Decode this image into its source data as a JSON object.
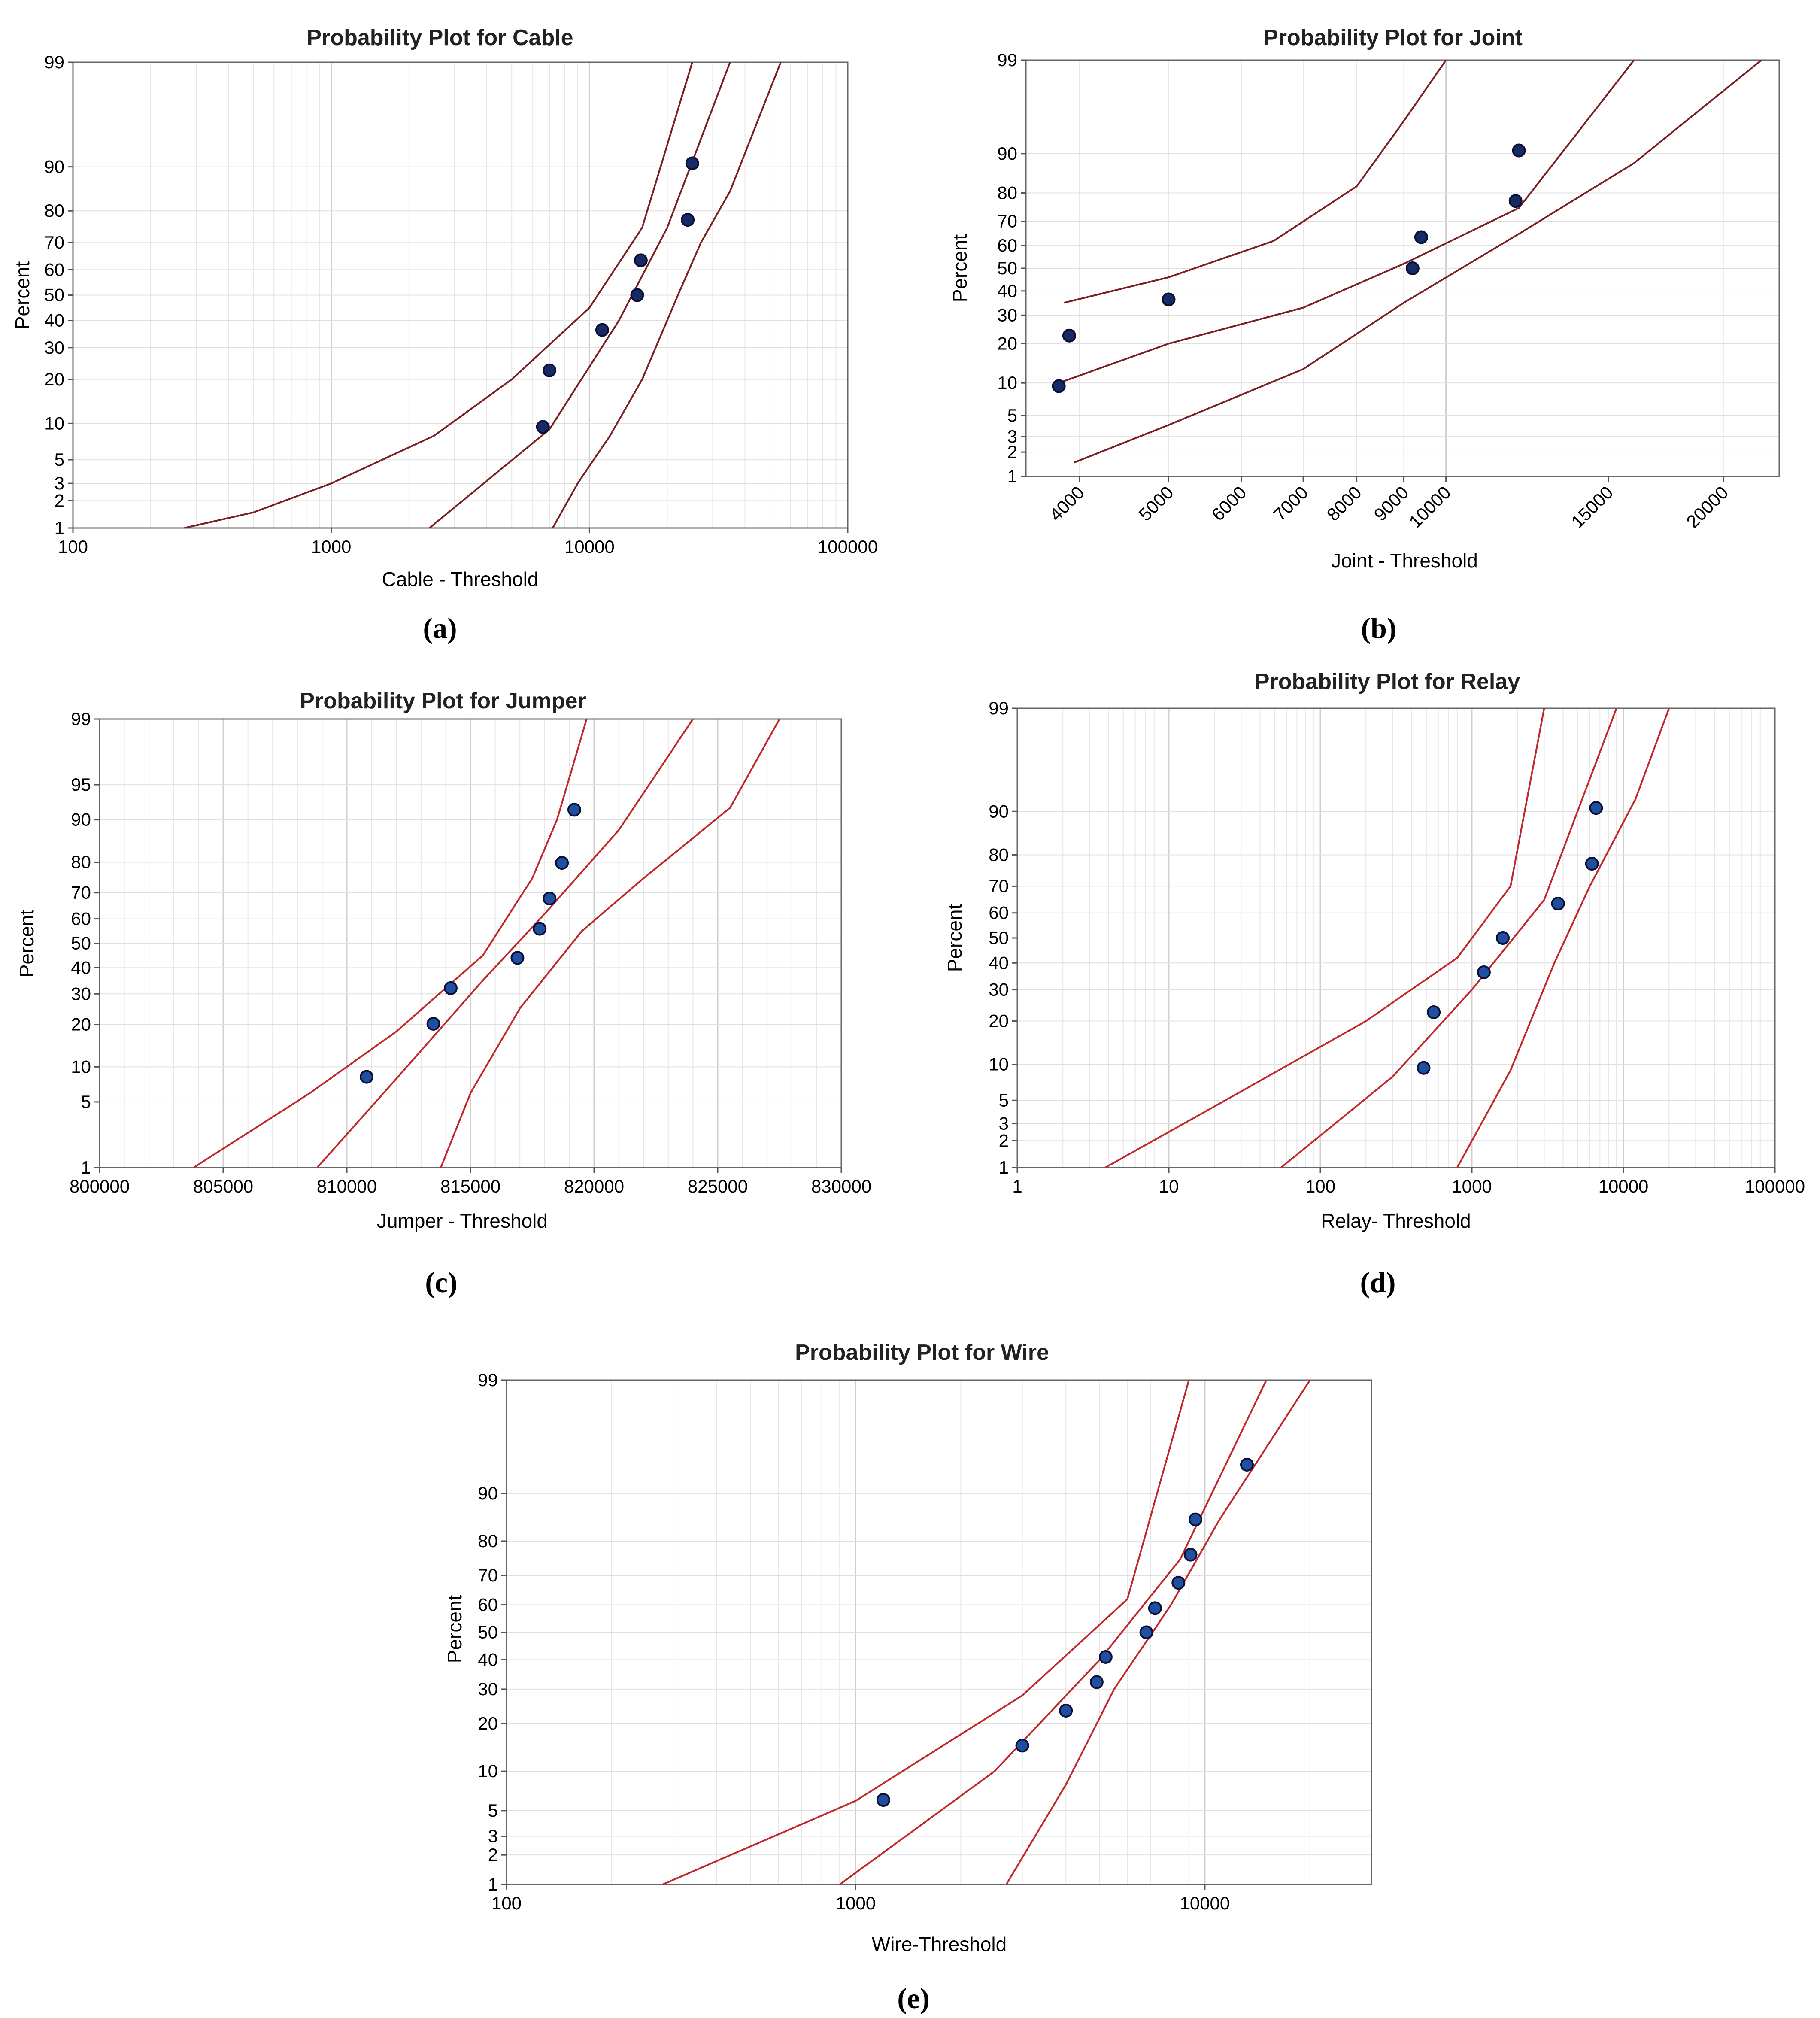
{
  "chart_data": [
    {
      "panel": "a",
      "caption": "(a)",
      "type": "scatter",
      "title": "Probability Plot for Cable",
      "xlabel": "Cable - Threshold",
      "ylabel": "Percent",
      "xscale": "log",
      "xlim": [
        100,
        100000
      ],
      "ylim": [
        1,
        99
      ],
      "x_ticks": [
        100,
        1000,
        10000,
        100000
      ],
      "x_tick_labels": [
        "100",
        "1000",
        "10000",
        "100000"
      ],
      "y_ticks": [
        1,
        2,
        3,
        5,
        10,
        20,
        30,
        40,
        50,
        60,
        70,
        80,
        90,
        99
      ],
      "y_tick_labels": [
        "1",
        "2",
        "3",
        "5",
        "10",
        "20",
        "30",
        "40",
        "50",
        "60",
        "70",
        "80",
        "90",
        "99"
      ],
      "grid": true,
      "point_color": "#162a66",
      "line_color": "#7a1f22",
      "points": [
        [
          6600,
          9.4
        ],
        [
          7000,
          22.6
        ],
        [
          11200,
          36.4
        ],
        [
          15300,
          50
        ],
        [
          15800,
          63.6
        ],
        [
          24000,
          77.4
        ],
        [
          25000,
          90.6
        ]
      ],
      "fit": [
        [
          2400,
          1
        ],
        [
          7000,
          9
        ],
        [
          13000,
          40
        ],
        [
          20000,
          75
        ],
        [
          35000,
          99
        ]
      ],
      "ci_upper": [
        [
          270,
          1
        ],
        [
          500,
          1.5
        ],
        [
          1000,
          3
        ],
        [
          2500,
          8
        ],
        [
          5000,
          20
        ],
        [
          10000,
          45
        ],
        [
          16000,
          75
        ],
        [
          25000,
          99
        ]
      ],
      "ci_lower": [
        [
          7200,
          1
        ],
        [
          9000,
          3
        ],
        [
          12000,
          8
        ],
        [
          16000,
          20
        ],
        [
          22000,
          50
        ],
        [
          27000,
          70
        ],
        [
          35000,
          85
        ],
        [
          55000,
          99
        ]
      ]
    },
    {
      "panel": "b",
      "caption": "(b)",
      "type": "scatter",
      "title": "Probability Plot for Joint",
      "xlabel": "Joint - Threshold",
      "ylabel": "Percent",
      "xscale": "log",
      "xlim": [
        3500,
        23000
      ],
      "ylim": [
        1,
        99
      ],
      "x_ticks": [
        4000,
        5000,
        6000,
        7000,
        8000,
        9000,
        10000,
        15000,
        20000
      ],
      "x_tick_labels": [
        "4000",
        "5000",
        "6000",
        "7000",
        "8000",
        "9000",
        "10000",
        "15000",
        "20000"
      ],
      "y_ticks": [
        1,
        2,
        3,
        5,
        10,
        20,
        30,
        40,
        50,
        60,
        70,
        80,
        90,
        99
      ],
      "y_tick_labels": [
        "1",
        "2",
        "3",
        "5",
        "10",
        "20",
        "30",
        "40",
        "50",
        "60",
        "70",
        "80",
        "90",
        "99"
      ],
      "grid": true,
      "point_color": "#162a66",
      "line_color": "#7a1f22",
      "points": [
        [
          3800,
          9.4
        ],
        [
          3900,
          22.6
        ],
        [
          5000,
          36.4
        ],
        [
          9200,
          50
        ],
        [
          9400,
          63.6
        ],
        [
          11900,
          77.4
        ],
        [
          12000,
          90.6
        ]
      ],
      "fit": [
        [
          3800,
          10
        ],
        [
          5000,
          20
        ],
        [
          7000,
          33
        ],
        [
          9000,
          52
        ],
        [
          12000,
          75
        ],
        [
          16000,
          99
        ]
      ],
      "ci_upper": [
        [
          3850,
          35
        ],
        [
          5000,
          46
        ],
        [
          6500,
          62
        ],
        [
          8000,
          82
        ],
        [
          9000,
          95
        ],
        [
          10000,
          99
        ]
      ],
      "ci_lower": [
        [
          3950,
          1.5
        ],
        [
          5000,
          4
        ],
        [
          7000,
          13
        ],
        [
          9000,
          35
        ],
        [
          12000,
          65
        ],
        [
          16000,
          88
        ],
        [
          22000,
          99
        ]
      ]
    },
    {
      "panel": "c",
      "caption": "(c)",
      "type": "scatter",
      "title": "Probability Plot for Jumper",
      "xlabel": "Jumper - Threshold",
      "ylabel": "Percent",
      "xscale": "linear",
      "xlim": [
        800000,
        830000
      ],
      "ylim": [
        1,
        99
      ],
      "x_ticks": [
        800000,
        805000,
        810000,
        815000,
        820000,
        825000,
        830000
      ],
      "x_tick_labels": [
        "800000",
        "805000",
        "810000",
        "815000",
        "820000",
        "825000",
        "830000"
      ],
      "y_ticks": [
        1,
        5,
        10,
        20,
        30,
        40,
        50,
        60,
        70,
        80,
        90,
        95,
        99
      ],
      "y_tick_labels": [
        "1",
        "5",
        "10",
        "20",
        "30",
        "40",
        "50",
        "60",
        "70",
        "80",
        "90",
        "95",
        "99"
      ],
      "grid": true,
      "point_color": "#1f4fa0",
      "line_color": "#c0282c",
      "points": [
        [
          810800,
          8.3
        ],
        [
          813500,
          20.2
        ],
        [
          814200,
          32.1
        ],
        [
          816900,
          44
        ],
        [
          817800,
          56
        ],
        [
          818200,
          67.9
        ],
        [
          818700,
          79.8
        ],
        [
          819200,
          91.7
        ]
      ],
      "fit": [
        [
          808800,
          1
        ],
        [
          812000,
          8
        ],
        [
          815500,
          35
        ],
        [
          818000,
          62
        ],
        [
          821000,
          88
        ],
        [
          824000,
          99
        ]
      ],
      "ci_upper": [
        [
          803800,
          1
        ],
        [
          808500,
          6
        ],
        [
          812000,
          18
        ],
        [
          815500,
          45
        ],
        [
          817500,
          75
        ],
        [
          818500,
          90
        ],
        [
          819700,
          99
        ]
      ],
      "ci_lower": [
        [
          813800,
          1
        ],
        [
          815000,
          6
        ],
        [
          817000,
          25
        ],
        [
          819500,
          55
        ],
        [
          822000,
          75
        ],
        [
          825500,
          92
        ],
        [
          827500,
          99
        ]
      ]
    },
    {
      "panel": "d",
      "caption": "(d)",
      "type": "scatter",
      "title": "Probability Plot for Relay",
      "xlabel": "Relay- Threshold",
      "ylabel": "Percent",
      "xscale": "log",
      "xlim": [
        1,
        100000
      ],
      "ylim": [
        1,
        99
      ],
      "x_ticks": [
        1,
        10,
        100,
        1000,
        10000,
        100000
      ],
      "x_tick_labels": [
        "1",
        "10",
        "100",
        "1000",
        "10000",
        "100000"
      ],
      "y_ticks": [
        1,
        2,
        3,
        5,
        10,
        20,
        30,
        40,
        50,
        60,
        70,
        80,
        90,
        99
      ],
      "y_tick_labels": [
        "1",
        "2",
        "3",
        "5",
        "10",
        "20",
        "30",
        "40",
        "50",
        "60",
        "70",
        "80",
        "90",
        "99"
      ],
      "grid": true,
      "point_color": "#1f4fa0",
      "line_color": "#c0282c",
      "points": [
        [
          480,
          9.4
        ],
        [
          560,
          22.6
        ],
        [
          1200,
          36.4
        ],
        [
          1600,
          50
        ],
        [
          3700,
          63.6
        ],
        [
          6200,
          77.4
        ],
        [
          6600,
          90.6
        ]
      ],
      "fit": [
        [
          55,
          1
        ],
        [
          300,
          8
        ],
        [
          1000,
          30
        ],
        [
          3000,
          65
        ],
        [
          9000,
          99
        ]
      ],
      "ci_upper": [
        [
          3.8,
          1
        ],
        [
          30,
          6
        ],
        [
          200,
          20
        ],
        [
          800,
          42
        ],
        [
          1800,
          70
        ],
        [
          3000,
          99
        ]
      ],
      "ci_lower": [
        [
          800,
          1
        ],
        [
          1800,
          9
        ],
        [
          3500,
          40
        ],
        [
          6000,
          70
        ],
        [
          12000,
          92
        ],
        [
          20000,
          99
        ]
      ]
    },
    {
      "panel": "e",
      "caption": "(e)",
      "type": "scatter",
      "title": "Probability Plot for Wire",
      "xlabel": "Wire-Threshold",
      "ylabel": "Percent",
      "xscale": "log",
      "xlim": [
        100,
        30000
      ],
      "ylim": [
        1,
        99
      ],
      "x_ticks": [
        100,
        1000,
        10000
      ],
      "x_tick_labels": [
        "100",
        "1000",
        "10000"
      ],
      "y_ticks": [
        1,
        2,
        3,
        5,
        10,
        20,
        30,
        40,
        50,
        60,
        70,
        80,
        90,
        99
      ],
      "y_tick_labels": [
        "1",
        "2",
        "3",
        "5",
        "10",
        "20",
        "30",
        "40",
        "50",
        "60",
        "70",
        "80",
        "90",
        "99"
      ],
      "grid": true,
      "point_color": "#1f4fa0",
      "line_color": "#c0282c",
      "points": [
        [
          1200,
          6.1
        ],
        [
          3000,
          14.8
        ],
        [
          4000,
          23.5
        ],
        [
          4900,
          32.3
        ],
        [
          5200,
          41
        ],
        [
          6800,
          50
        ],
        [
          7200,
          58.8
        ],
        [
          8400,
          67.6
        ],
        [
          9100,
          76.3
        ],
        [
          9400,
          85.1
        ],
        [
          13200,
          93.9
        ]
      ],
      "fit": [
        [
          900,
          1
        ],
        [
          2500,
          10
        ],
        [
          5000,
          40
        ],
        [
          8500,
          75
        ],
        [
          15000,
          99
        ]
      ],
      "ci_upper": [
        [
          280,
          1
        ],
        [
          1000,
          6
        ],
        [
          3000,
          28
        ],
        [
          6000,
          62
        ],
        [
          9000,
          99
        ]
      ],
      "ci_lower": [
        [
          2700,
          1
        ],
        [
          4000,
          8
        ],
        [
          5500,
          30
        ],
        [
          8000,
          60
        ],
        [
          11000,
          85
        ],
        [
          20000,
          99
        ]
      ]
    }
  ]
}
